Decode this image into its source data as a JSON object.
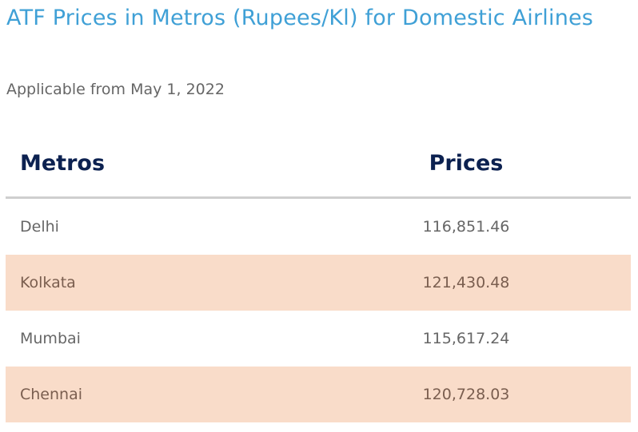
{
  "title": "ATF Prices in Metros (Rupees/Kl) for Domestic Airlines",
  "subtitle": "Applicable from May 1, 2022",
  "table": {
    "headers": [
      "Metros",
      "Prices"
    ],
    "rows": [
      {
        "metro": "Delhi",
        "price": "116,851.46"
      },
      {
        "metro": "Kolkata",
        "price": "121,430.48"
      },
      {
        "metro": "Mumbai",
        "price": "115,617.24"
      },
      {
        "metro": "Chennai",
        "price": "120,728.03"
      }
    ]
  },
  "colors": {
    "title": "#3fa0d6",
    "header_text": "#0c2150",
    "body_text": "#666666",
    "shaded_row": "#f9dcc9",
    "divider": "#cfcfcf"
  }
}
